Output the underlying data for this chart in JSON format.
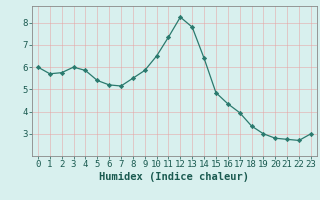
{
  "x": [
    0,
    1,
    2,
    3,
    4,
    5,
    6,
    7,
    8,
    9,
    10,
    11,
    12,
    13,
    14,
    15,
    16,
    17,
    18,
    19,
    20,
    21,
    22,
    23
  ],
  "y": [
    6.0,
    5.7,
    5.75,
    6.0,
    5.85,
    5.4,
    5.2,
    5.15,
    5.5,
    5.85,
    6.5,
    7.35,
    8.25,
    7.8,
    6.4,
    4.85,
    4.35,
    3.95,
    3.35,
    3.0,
    2.8,
    2.75,
    2.7,
    3.0
  ],
  "xlabel": "Humidex (Indice chaleur)",
  "ylabel": "",
  "ylim": [
    2.0,
    8.75
  ],
  "xlim": [
    -0.5,
    23.5
  ],
  "yticks": [
    3,
    4,
    5,
    6,
    7,
    8
  ],
  "xticks": [
    0,
    1,
    2,
    3,
    4,
    5,
    6,
    7,
    8,
    9,
    10,
    11,
    12,
    13,
    14,
    15,
    16,
    17,
    18,
    19,
    20,
    21,
    22,
    23
  ],
  "line_color": "#2a7a6e",
  "marker_color": "#2a7a6e",
  "bg_color": "#d8f0ee",
  "grid_color": "#c8e4e2",
  "axes_color": "#888888",
  "tick_label_color": "#1a5a50",
  "xlabel_fontsize": 7.5,
  "tick_fontsize": 6.5
}
